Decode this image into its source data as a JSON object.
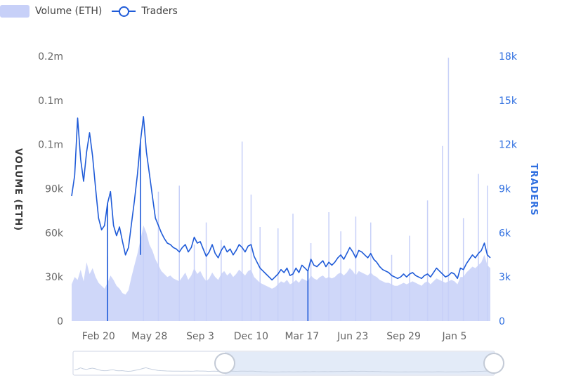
{
  "legend": {
    "volume_label": "Volume (ETH)",
    "traders_label": "Traders"
  },
  "colors": {
    "volume_fill": "#c7d0f8",
    "traders_line": "#1f5bd8",
    "right_axis_text": "#2f6fe0",
    "left_axis_title": "#3a3a3a"
  },
  "chart_data": {
    "type": "area",
    "series": [
      {
        "name": "Volume (ETH)",
        "axis": "left",
        "style": "area"
      },
      {
        "name": "Traders",
        "axis": "right",
        "style": "line"
      }
    ],
    "left_axis": {
      "title": "VOLUME (ETH)",
      "tick_labels": [
        "0",
        "30k",
        "60k",
        "90k",
        "0.1m",
        "0.1m",
        "0.2m"
      ],
      "range": [
        0,
        180000
      ]
    },
    "right_axis": {
      "title": "TRADERS",
      "tick_labels": [
        "0",
        "3k",
        "6k",
        "9k",
        "12k",
        "15k",
        "18k"
      ],
      "range": [
        0,
        18000
      ]
    },
    "x_tick_labels": [
      "Feb 20",
      "May 28",
      "Sep 3",
      "Dec 10",
      "Mar 17",
      "Jun 23",
      "Sep 29",
      "Jan 5"
    ],
    "x_index_range": [
      0,
      140
    ],
    "x_tick_index": [
      9,
      26,
      43,
      60,
      77,
      94,
      111,
      128
    ],
    "traders": [
      [
        0,
        8500
      ],
      [
        1,
        9900
      ],
      [
        2,
        13800
      ],
      [
        3,
        11000
      ],
      [
        4,
        9500
      ],
      [
        5,
        11500
      ],
      [
        6,
        12800
      ],
      [
        7,
        11200
      ],
      [
        8,
        9000
      ],
      [
        9,
        7000
      ],
      [
        10,
        6200
      ],
      [
        11,
        6500
      ],
      [
        12,
        8000
      ],
      [
        13,
        8800
      ],
      [
        14,
        6500
      ],
      [
        15,
        5800
      ],
      [
        16,
        6400
      ],
      [
        17,
        5400
      ],
      [
        18,
        4500
      ],
      [
        19,
        5000
      ],
      [
        20,
        6600
      ],
      [
        21,
        8200
      ],
      [
        22,
        10000
      ],
      [
        23,
        12200
      ],
      [
        24,
        13900
      ],
      [
        25,
        11500
      ],
      [
        26,
        10000
      ],
      [
        27,
        8500
      ],
      [
        28,
        7000
      ],
      [
        29,
        6500
      ],
      [
        30,
        6000
      ],
      [
        31,
        5600
      ],
      [
        32,
        5300
      ],
      [
        33,
        5200
      ],
      [
        34,
        5000
      ],
      [
        35,
        4900
      ],
      [
        36,
        4700
      ],
      [
        37,
        5000
      ],
      [
        38,
        5200
      ],
      [
        39,
        4700
      ],
      [
        40,
        5000
      ],
      [
        41,
        5700
      ],
      [
        42,
        5300
      ],
      [
        43,
        5400
      ],
      [
        44,
        4900
      ],
      [
        45,
        4400
      ],
      [
        46,
        4700
      ],
      [
        47,
        5200
      ],
      [
        48,
        4600
      ],
      [
        49,
        4300
      ],
      [
        50,
        4800
      ],
      [
        51,
        5100
      ],
      [
        52,
        4700
      ],
      [
        53,
        4900
      ],
      [
        54,
        4500
      ],
      [
        55,
        4800
      ],
      [
        56,
        5200
      ],
      [
        57,
        5000
      ],
      [
        58,
        4700
      ],
      [
        59,
        5100
      ],
      [
        60,
        5200
      ],
      [
        61,
        4400
      ],
      [
        62,
        4000
      ],
      [
        63,
        3600
      ],
      [
        64,
        3400
      ],
      [
        65,
        3200
      ],
      [
        66,
        3000
      ],
      [
        67,
        2800
      ],
      [
        68,
        3000
      ],
      [
        69,
        3200
      ],
      [
        70,
        3500
      ],
      [
        71,
        3300
      ],
      [
        72,
        3600
      ],
      [
        73,
        3100
      ],
      [
        74,
        3200
      ],
      [
        75,
        3600
      ],
      [
        76,
        3300
      ],
      [
        77,
        3800
      ],
      [
        78,
        3600
      ],
      [
        79,
        3400
      ],
      [
        80,
        4200
      ],
      [
        81,
        3800
      ],
      [
        82,
        3700
      ],
      [
        83,
        3900
      ],
      [
        84,
        4100
      ],
      [
        85,
        3700
      ],
      [
        86,
        4000
      ],
      [
        87,
        3800
      ],
      [
        88,
        4000
      ],
      [
        89,
        4300
      ],
      [
        90,
        4500
      ],
      [
        91,
        4200
      ],
      [
        92,
        4600
      ],
      [
        93,
        5000
      ],
      [
        94,
        4700
      ],
      [
        95,
        4300
      ],
      [
        96,
        4800
      ],
      [
        97,
        4700
      ],
      [
        98,
        4500
      ],
      [
        99,
        4300
      ],
      [
        100,
        4600
      ],
      [
        101,
        4200
      ],
      [
        102,
        4000
      ],
      [
        103,
        3700
      ],
      [
        104,
        3500
      ],
      [
        105,
        3400
      ],
      [
        106,
        3300
      ],
      [
        107,
        3100
      ],
      [
        108,
        3000
      ],
      [
        109,
        2900
      ],
      [
        110,
        3000
      ],
      [
        111,
        3200
      ],
      [
        112,
        3000
      ],
      [
        113,
        3200
      ],
      [
        114,
        3300
      ],
      [
        115,
        3100
      ],
      [
        116,
        3000
      ],
      [
        117,
        2900
      ],
      [
        118,
        3100
      ],
      [
        119,
        3200
      ],
      [
        120,
        3000
      ],
      [
        121,
        3300
      ],
      [
        122,
        3600
      ],
      [
        123,
        3400
      ],
      [
        124,
        3200
      ],
      [
        125,
        3000
      ],
      [
        126,
        3100
      ],
      [
        127,
        3300
      ],
      [
        128,
        3200
      ],
      [
        129,
        2900
      ],
      [
        130,
        3600
      ],
      [
        131,
        3500
      ],
      [
        132,
        3900
      ],
      [
        133,
        4200
      ],
      [
        134,
        4500
      ],
      [
        135,
        4300
      ],
      [
        136,
        4600
      ],
      [
        137,
        4800
      ],
      [
        138,
        5300
      ],
      [
        139,
        4500
      ],
      [
        140,
        4300
      ]
    ],
    "traders_dips": [
      [
        12,
        0
      ],
      [
        79,
        0
      ],
      [
        23,
        4500
      ]
    ],
    "volume_notes": "daily volume mostly between 20k and 60k ETH, with isolated spikes reaching about 180k",
    "volume": [
      [
        0,
        25000
      ],
      [
        1,
        30000
      ],
      [
        2,
        28000
      ],
      [
        3,
        35000
      ],
      [
        4,
        27000
      ],
      [
        5,
        40000
      ],
      [
        6,
        32000
      ],
      [
        7,
        36000
      ],
      [
        8,
        30000
      ],
      [
        9,
        26000
      ],
      [
        10,
        24000
      ],
      [
        11,
        22000
      ],
      [
        12,
        26000
      ],
      [
        13,
        31000
      ],
      [
        14,
        28000
      ],
      [
        15,
        24000
      ],
      [
        16,
        22000
      ],
      [
        17,
        19000
      ],
      [
        18,
        18000
      ],
      [
        19,
        21000
      ],
      [
        20,
        30000
      ],
      [
        21,
        38000
      ],
      [
        22,
        46000
      ],
      [
        23,
        55000
      ],
      [
        24,
        65000
      ],
      [
        25,
        60000
      ],
      [
        26,
        52000
      ],
      [
        27,
        48000
      ],
      [
        28,
        42000
      ],
      [
        29,
        38000
      ],
      [
        30,
        34000
      ],
      [
        31,
        32000
      ],
      [
        32,
        30000
      ],
      [
        33,
        31000
      ],
      [
        34,
        29000
      ],
      [
        35,
        28000
      ],
      [
        36,
        27000
      ],
      [
        37,
        30000
      ],
      [
        38,
        33000
      ],
      [
        39,
        28000
      ],
      [
        40,
        31000
      ],
      [
        41,
        36000
      ],
      [
        42,
        32000
      ],
      [
        43,
        34000
      ],
      [
        44,
        30000
      ],
      [
        45,
        27000
      ],
      [
        46,
        29000
      ],
      [
        47,
        33000
      ],
      [
        48,
        30000
      ],
      [
        49,
        28000
      ],
      [
        50,
        32000
      ],
      [
        51,
        34000
      ],
      [
        52,
        31000
      ],
      [
        53,
        33000
      ],
      [
        54,
        30000
      ],
      [
        55,
        32000
      ],
      [
        56,
        35000
      ],
      [
        57,
        33000
      ],
      [
        58,
        31000
      ],
      [
        59,
        34000
      ],
      [
        60,
        35000
      ],
      [
        61,
        30000
      ],
      [
        62,
        28000
      ],
      [
        63,
        26000
      ],
      [
        64,
        25000
      ],
      [
        65,
        24000
      ],
      [
        66,
        23000
      ],
      [
        67,
        22000
      ],
      [
        68,
        23000
      ],
      [
        69,
        25000
      ],
      [
        70,
        27000
      ],
      [
        71,
        26000
      ],
      [
        72,
        28000
      ],
      [
        73,
        25000
      ],
      [
        74,
        26000
      ],
      [
        75,
        28000
      ],
      [
        76,
        26000
      ],
      [
        77,
        29000
      ],
      [
        78,
        28000
      ],
      [
        79,
        27000
      ],
      [
        80,
        31000
      ],
      [
        81,
        29000
      ],
      [
        82,
        28000
      ],
      [
        83,
        30000
      ],
      [
        84,
        31000
      ],
      [
        85,
        29000
      ],
      [
        86,
        30000
      ],
      [
        87,
        29000
      ],
      [
        88,
        30000
      ],
      [
        89,
        32000
      ],
      [
        90,
        33000
      ],
      [
        91,
        31000
      ],
      [
        92,
        33000
      ],
      [
        93,
        36000
      ],
      [
        94,
        34000
      ],
      [
        95,
        31000
      ],
      [
        96,
        34000
      ],
      [
        97,
        33000
      ],
      [
        98,
        32000
      ],
      [
        99,
        31000
      ],
      [
        100,
        33000
      ],
      [
        101,
        31000
      ],
      [
        102,
        30000
      ],
      [
        103,
        28000
      ],
      [
        104,
        27000
      ],
      [
        105,
        26000
      ],
      [
        106,
        26000
      ],
      [
        107,
        25000
      ],
      [
        108,
        24000
      ],
      [
        109,
        24000
      ],
      [
        110,
        25000
      ],
      [
        111,
        26000
      ],
      [
        112,
        25000
      ],
      [
        113,
        26000
      ],
      [
        114,
        27000
      ],
      [
        115,
        26000
      ],
      [
        116,
        25000
      ],
      [
        117,
        24000
      ],
      [
        118,
        26000
      ],
      [
        119,
        27000
      ],
      [
        120,
        25000
      ],
      [
        121,
        27000
      ],
      [
        122,
        29000
      ],
      [
        123,
        28000
      ],
      [
        124,
        27000
      ],
      [
        125,
        26000
      ],
      [
        126,
        27000
      ],
      [
        127,
        28000
      ],
      [
        128,
        27000
      ],
      [
        129,
        25000
      ],
      [
        130,
        30000
      ],
      [
        131,
        30000
      ],
      [
        132,
        33000
      ],
      [
        133,
        35000
      ],
      [
        134,
        37000
      ],
      [
        135,
        36000
      ],
      [
        136,
        38000
      ],
      [
        137,
        40000
      ],
      [
        138,
        45000
      ],
      [
        139,
        38000
      ],
      [
        140,
        36000
      ]
    ],
    "volume_spikes": [
      [
        12,
        44000
      ],
      [
        24,
        60000
      ],
      [
        29,
        88000
      ],
      [
        36,
        92000
      ],
      [
        41,
        52000
      ],
      [
        45,
        67000
      ],
      [
        50,
        55000
      ],
      [
        57,
        122000
      ],
      [
        60,
        86000
      ],
      [
        63,
        64000
      ],
      [
        69,
        63000
      ],
      [
        74,
        73000
      ],
      [
        80,
        53000
      ],
      [
        86,
        74000
      ],
      [
        90,
        61000
      ],
      [
        95,
        71000
      ],
      [
        100,
        67000
      ],
      [
        107,
        45000
      ],
      [
        113,
        58000
      ],
      [
        119,
        82000
      ],
      [
        124,
        119000
      ],
      [
        126,
        179000
      ],
      [
        131,
        70000
      ],
      [
        136,
        100000
      ],
      [
        139,
        92000
      ]
    ],
    "grid": false,
    "legend_position": "top-left"
  },
  "range_slider": {
    "has_mini_preview": true
  }
}
